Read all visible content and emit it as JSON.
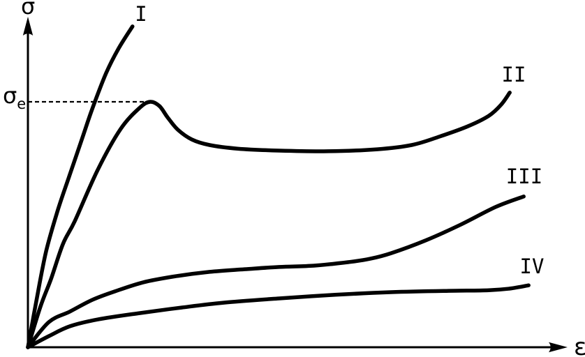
{
  "figure": {
    "ink_color": "#000000",
    "background_color": "#ffffff",
    "y_axis_label": "σ",
    "x_axis_label": "ε",
    "guide_label": {
      "main": "σ",
      "sub": "e"
    }
  },
  "chart_data": {
    "type": "line",
    "xlabel": "ε",
    "ylabel": "σ",
    "axes_numeric": false,
    "tick_labels": [],
    "grid": false,
    "legend": false,
    "x_range_shown": [
      0,
      1
    ],
    "y_range_shown": [
      0,
      1
    ],
    "annotations": [
      {
        "label": "σe",
        "kind": "dashed-horizontal-guide",
        "y": 0.749,
        "x_from": 0.0,
        "x_to": 0.227
      }
    ],
    "series": [
      {
        "name": "I",
        "description": "brittle: steep rise, fracture with no plastic plateau",
        "points": [
          [
            0,
            0
          ],
          [
            0.016,
            0.145
          ],
          [
            0.034,
            0.294
          ],
          [
            0.056,
            0.421
          ],
          [
            0.078,
            0.528
          ],
          [
            0.1,
            0.634
          ],
          [
            0.12,
            0.73
          ],
          [
            0.145,
            0.836
          ],
          [
            0.168,
            0.911
          ],
          [
            0.194,
            0.979
          ]
        ]
      },
      {
        "name": "II",
        "description": "ductile with upper yield point at σe, yield drop, long plateau, final hardening upturn",
        "points": [
          [
            0,
            0
          ],
          [
            0.023,
            0.123
          ],
          [
            0.043,
            0.209
          ],
          [
            0.065,
            0.315
          ],
          [
            0.087,
            0.385
          ],
          [
            0.13,
            0.543
          ],
          [
            0.172,
            0.666
          ],
          [
            0.207,
            0.73
          ],
          [
            0.227,
            0.749
          ],
          [
            0.244,
            0.736
          ],
          [
            0.259,
            0.702
          ],
          [
            0.278,
            0.664
          ],
          [
            0.304,
            0.634
          ],
          [
            0.337,
            0.617
          ],
          [
            0.389,
            0.606
          ],
          [
            0.466,
            0.6
          ],
          [
            0.557,
            0.598
          ],
          [
            0.648,
            0.604
          ],
          [
            0.712,
            0.617
          ],
          [
            0.764,
            0.643
          ],
          [
            0.816,
            0.674
          ],
          [
            0.855,
            0.706
          ],
          [
            0.878,
            0.74
          ],
          [
            0.894,
            0.777
          ]
        ]
      },
      {
        "name": "III",
        "description": "gradual yield, flat region, then progressive strain hardening",
        "points": [
          [
            0,
            0
          ],
          [
            0.039,
            0.077
          ],
          [
            0.078,
            0.109
          ],
          [
            0.12,
            0.145
          ],
          [
            0.164,
            0.172
          ],
          [
            0.214,
            0.198
          ],
          [
            0.268,
            0.215
          ],
          [
            0.337,
            0.23
          ],
          [
            0.402,
            0.238
          ],
          [
            0.466,
            0.245
          ],
          [
            0.531,
            0.249
          ],
          [
            0.596,
            0.26
          ],
          [
            0.635,
            0.27
          ],
          [
            0.674,
            0.287
          ],
          [
            0.738,
            0.326
          ],
          [
            0.803,
            0.374
          ],
          [
            0.868,
            0.428
          ],
          [
            0.92,
            0.46
          ]
        ]
      },
      {
        "name": "IV",
        "description": "low stress level, nearly flat extended curve with slight upturn at end",
        "points": [
          [
            0,
            0
          ],
          [
            0.039,
            0.034
          ],
          [
            0.078,
            0.064
          ],
          [
            0.13,
            0.085
          ],
          [
            0.207,
            0.104
          ],
          [
            0.285,
            0.121
          ],
          [
            0.363,
            0.136
          ],
          [
            0.466,
            0.149
          ],
          [
            0.57,
            0.16
          ],
          [
            0.674,
            0.168
          ],
          [
            0.777,
            0.172
          ],
          [
            0.855,
            0.174
          ],
          [
            0.894,
            0.179
          ],
          [
            0.929,
            0.189
          ]
        ]
      }
    ]
  }
}
